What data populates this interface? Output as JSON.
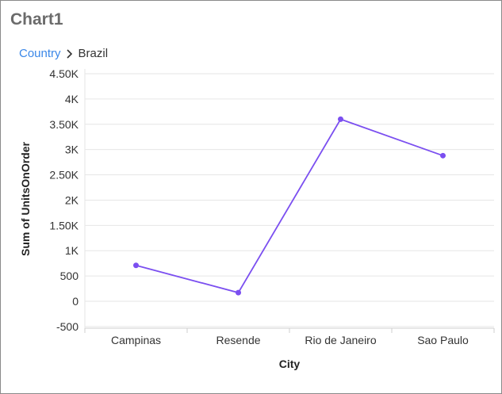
{
  "widget": {
    "title": "Chart1"
  },
  "breadcrumb": {
    "parent": "Country",
    "current": "Brazil"
  },
  "colors": {
    "series": "#7b4ff0",
    "link": "#3a87e8",
    "grid": "#e6e6e6"
  },
  "icons": {
    "separator": "chevron-right-icon"
  },
  "chart_data": {
    "type": "line",
    "title": "",
    "xlabel": "City",
    "ylabel": "Sum of UnitsOnOrder",
    "categories": [
      "Campinas",
      "Resende",
      "Rio de Janeiro",
      "Sao Paulo"
    ],
    "series": [
      {
        "values": [
          710,
          170,
          3600,
          2880
        ]
      }
    ],
    "ylim": [
      -500,
      4500
    ],
    "y_ticks": [
      {
        "value": 4500,
        "label": "4.50K"
      },
      {
        "value": 4000,
        "label": "4K"
      },
      {
        "value": 3500,
        "label": "3.50K"
      },
      {
        "value": 3000,
        "label": "3K"
      },
      {
        "value": 2500,
        "label": "2.50K"
      },
      {
        "value": 2000,
        "label": "2K"
      },
      {
        "value": 1500,
        "label": "1.50K"
      },
      {
        "value": 1000,
        "label": "1K"
      },
      {
        "value": 500,
        "label": "500"
      },
      {
        "value": 0,
        "label": "0"
      },
      {
        "value": -500,
        "label": "-500"
      }
    ],
    "grid": true,
    "legend": "none"
  }
}
